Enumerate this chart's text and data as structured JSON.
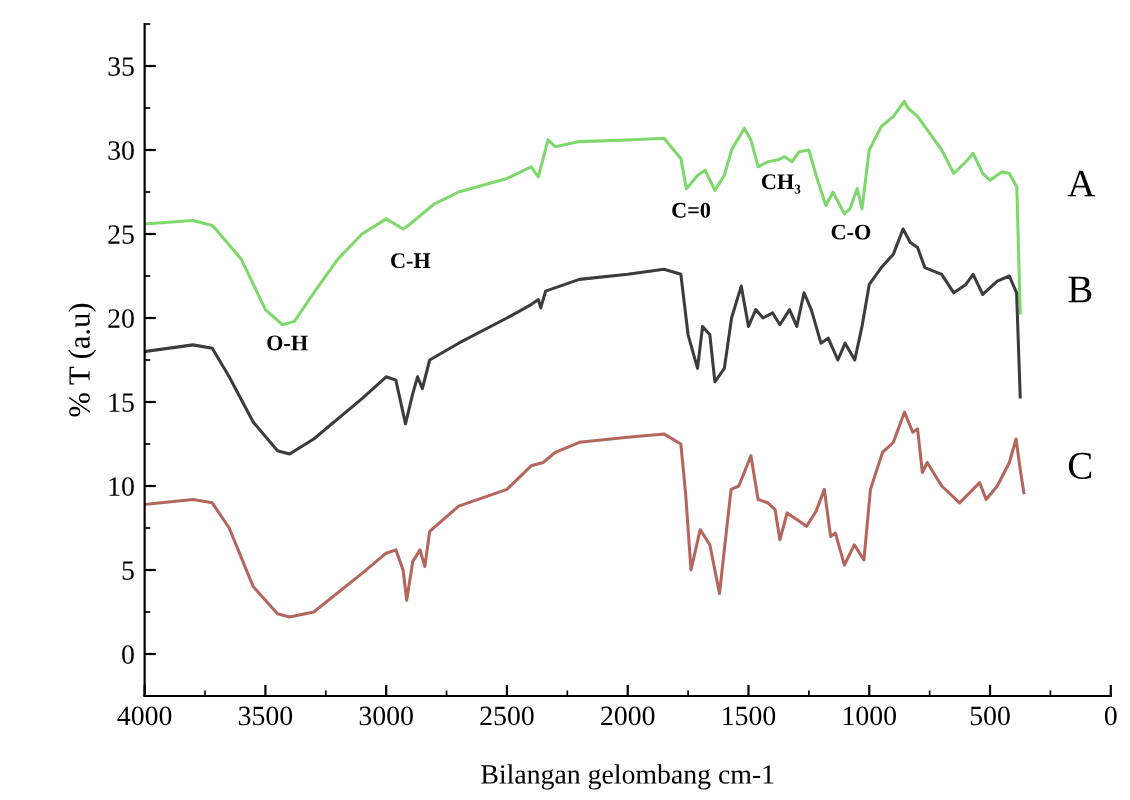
{
  "chart_data": {
    "type": "line",
    "xlabel": "Bilangan gelombang cm-1",
    "ylabel": "% T (a.u)",
    "xlim": [
      4000,
      0
    ],
    "xticks": [
      4000,
      3500,
      3000,
      2500,
      2000,
      1500,
      1000,
      500,
      0
    ],
    "ylim": [
      -2.5,
      37.5
    ],
    "yticks": [
      0,
      5,
      10,
      15,
      20,
      25,
      30,
      35
    ],
    "grid": false,
    "legend": false,
    "marker": "none",
    "line_style": "solid",
    "series": [
      {
        "name": "A",
        "color": "#7fd86c",
        "x": [
          4000,
          3800,
          3720,
          3700,
          3600,
          3500,
          3430,
          3380,
          3300,
          3200,
          3100,
          3000,
          2930,
          2900,
          2800,
          2700,
          2500,
          2400,
          2370,
          2350,
          2330,
          2300,
          2200,
          2000,
          1850,
          1780,
          1757,
          1710,
          1680,
          1639,
          1600,
          1570,
          1517,
          1490,
          1460,
          1420,
          1380,
          1350,
          1320,
          1290,
          1250,
          1220,
          1180,
          1150,
          1103,
          1080,
          1050,
          1030,
          1000,
          950,
          900,
          855,
          840,
          800,
          750,
          700,
          650,
          600,
          570,
          530,
          500,
          450,
          420,
          389,
          375
        ],
        "values": [
          25.6,
          25.8,
          25.5,
          25.2,
          23.5,
          20.5,
          19.6,
          19.8,
          21.5,
          23.5,
          25,
          25.9,
          25.3,
          25.6,
          26.8,
          27.5,
          28.3,
          29.0,
          28.4,
          29.5,
          30.6,
          30.2,
          30.5,
          30.6,
          30.7,
          29.5,
          27.7,
          28.5,
          28.8,
          27.6,
          28.5,
          30.0,
          31.3,
          30.6,
          29.0,
          29.3,
          29.4,
          29.6,
          29.3,
          29.9,
          30.0,
          28.5,
          26.7,
          27.5,
          26.2,
          26.5,
          27.7,
          26.5,
          30.0,
          31.4,
          32.0,
          32.9,
          32.5,
          32.0,
          31.0,
          30.0,
          28.6,
          29.3,
          29.8,
          28.6,
          28.2,
          28.7,
          28.6,
          27.8,
          20.3
        ]
      },
      {
        "name": "B",
        "color": "#3c3c3c",
        "x": [
          4000,
          3800,
          3720,
          3650,
          3550,
          3450,
          3400,
          3300,
          3100,
          3000,
          2960,
          2920,
          2890,
          2870,
          2850,
          2820,
          2700,
          2500,
          2400,
          2370,
          2360,
          2340,
          2200,
          2000,
          1850,
          1780,
          1750,
          1711,
          1690,
          1660,
          1639,
          1600,
          1570,
          1530,
          1500,
          1470,
          1440,
          1400,
          1370,
          1330,
          1300,
          1270,
          1240,
          1200,
          1170,
          1130,
          1100,
          1060,
          1030,
          1000,
          950,
          900,
          860,
          830,
          800,
          770,
          700,
          650,
          600,
          570,
          530,
          470,
          420,
          390,
          375
        ],
        "values": [
          18,
          18.4,
          18.2,
          16.5,
          13.8,
          12.1,
          11.9,
          12.8,
          15.2,
          16.5,
          16.3,
          13.7,
          15.5,
          16.5,
          15.8,
          17.5,
          18.5,
          20,
          20.8,
          21.1,
          20.6,
          21.6,
          22.3,
          22.6,
          22.9,
          22.6,
          19,
          17.0,
          19.5,
          19,
          16.2,
          17,
          20,
          21.9,
          19.5,
          20.5,
          20,
          20.3,
          19.6,
          20.5,
          19.5,
          21.5,
          20.5,
          18.5,
          18.8,
          17.5,
          18.5,
          17.5,
          19.5,
          22,
          23,
          23.8,
          25.3,
          24.5,
          24.2,
          23,
          22.6,
          21.5,
          22,
          22.6,
          21.4,
          22.2,
          22.5,
          21.5,
          15.3
        ]
      },
      {
        "name": "C",
        "color": "#b4665c",
        "x": [
          4000,
          3800,
          3720,
          3650,
          3550,
          3450,
          3400,
          3300,
          3100,
          3000,
          2960,
          2930,
          2915,
          2890,
          2860,
          2840,
          2820,
          2700,
          2500,
          2400,
          2350,
          2300,
          2200,
          2000,
          1850,
          1780,
          1760,
          1738,
          1700,
          1660,
          1620,
          1590,
          1572,
          1540,
          1490,
          1460,
          1420,
          1390,
          1370,
          1340,
          1300,
          1260,
          1220,
          1186,
          1160,
          1140,
          1103,
          1062,
          1022,
          995,
          945,
          900,
          854,
          820,
          800,
          780,
          760,
          700,
          626,
          543,
          516,
          470,
          420,
          392,
          375,
          360
        ],
        "values": [
          8.9,
          9.2,
          9.0,
          7.5,
          4,
          2.4,
          2.2,
          2.5,
          4.8,
          6,
          6.2,
          5,
          3.2,
          5.5,
          6.2,
          5.2,
          7.3,
          8.8,
          9.8,
          11.2,
          11.4,
          12.0,
          12.6,
          12.9,
          13.1,
          12.5,
          9.5,
          5.0,
          7.4,
          6.5,
          3.6,
          7.5,
          9.8,
          10,
          11.8,
          9.2,
          9.0,
          8.6,
          6.8,
          8.4,
          8.0,
          7.6,
          8.5,
          9.8,
          7.0,
          7.2,
          5.3,
          6.5,
          5.6,
          9.8,
          12.0,
          12.6,
          14.4,
          13.2,
          13.4,
          10.8,
          11.4,
          10.0,
          9.0,
          10.2,
          9.2,
          10.0,
          11.4,
          12.8,
          11.0,
          9.6
        ]
      }
    ],
    "annotations": [
      "O-H",
      "C-H",
      "C=0",
      "CH₃",
      "C-O"
    ]
  }
}
